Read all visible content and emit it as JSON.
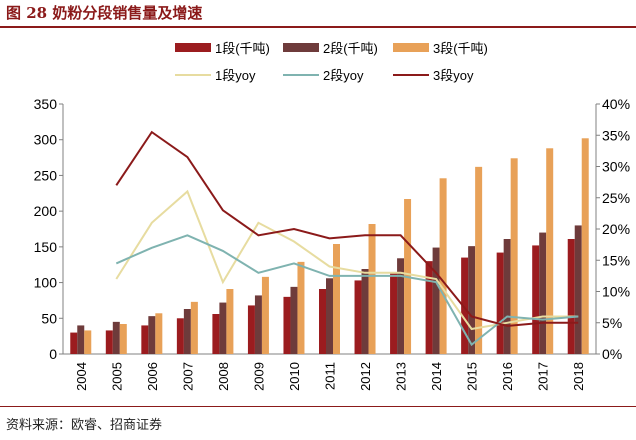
{
  "figure": {
    "title": "图 28  奶粉分段销售量及增速",
    "source": "资料来源：欧睿、招商证券"
  },
  "colors": {
    "title": "#8B1A1A",
    "bar_seg1": "#9B1C1F",
    "bar_seg2": "#6E3B3B",
    "bar_seg3": "#E8A158",
    "line_seg1": "#E7DCA0",
    "line_seg2": "#7FB3B0",
    "line_seg3": "#8B1A1A"
  },
  "chart_data": {
    "type": "bar",
    "categories": [
      "2004",
      "2005",
      "2006",
      "2007",
      "2008",
      "2009",
      "2010",
      "2011",
      "2012",
      "2013",
      "2014",
      "2015",
      "2016",
      "2017",
      "2018"
    ],
    "series": [
      {
        "name": "1段(千吨)",
        "kind": "bar",
        "axis": "left",
        "values": [
          30,
          33,
          40,
          50,
          56,
          68,
          80,
          91,
          103,
          114,
          130,
          135,
          142,
          152,
          161
        ]
      },
      {
        "name": "2段(千吨)",
        "kind": "bar",
        "axis": "left",
        "values": [
          40,
          45,
          53,
          63,
          72,
          82,
          94,
          106,
          119,
          134,
          149,
          151,
          161,
          170,
          180
        ]
      },
      {
        "name": "3段(千吨)",
        "kind": "bar",
        "axis": "left",
        "values": [
          33,
          42,
          57,
          73,
          91,
          108,
          129,
          154,
          182,
          217,
          246,
          262,
          274,
          288,
          302
        ]
      },
      {
        "name": "1段yoy",
        "kind": "line",
        "axis": "right",
        "values": [
          null,
          12,
          21,
          26,
          11.5,
          21,
          18,
          14,
          13,
          13,
          12,
          4,
          5,
          6,
          6
        ]
      },
      {
        "name": "2段yoy",
        "kind": "line",
        "axis": "right",
        "values": [
          null,
          14.5,
          17,
          19,
          16.5,
          13,
          14.5,
          12.5,
          12.5,
          12.5,
          11.5,
          1.5,
          6,
          5.5,
          6
        ]
      },
      {
        "name": "3段yoy",
        "kind": "line",
        "axis": "right",
        "values": [
          null,
          27,
          35.5,
          31.5,
          23,
          19,
          20,
          18.5,
          19,
          19,
          13,
          6,
          4.5,
          5,
          5
        ]
      }
    ],
    "y_left": {
      "min": 0,
      "max": 350,
      "ticks": [
        "0",
        "50",
        "100",
        "150",
        "200",
        "250",
        "300",
        "350"
      ]
    },
    "y_right": {
      "min": 0,
      "max": 40,
      "ticks": [
        "0%",
        "5%",
        "10%",
        "15%",
        "20%",
        "25%",
        "30%",
        "35%",
        "40%"
      ]
    },
    "grid": false,
    "legend_position": "top"
  }
}
